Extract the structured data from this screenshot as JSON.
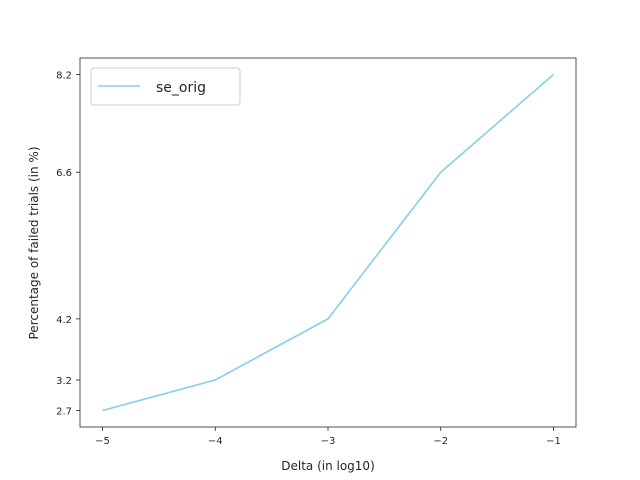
{
  "chart_data": {
    "type": "line",
    "x": [
      -5,
      -4,
      -3,
      -2,
      -1
    ],
    "x_tick_labels": [
      "−5",
      "−4",
      "−3",
      "−2",
      "−1"
    ],
    "y_ticks": [
      2.7,
      3.2,
      4.2,
      6.6,
      8.2
    ],
    "y_tick_labels": [
      "2.7",
      "3.2",
      "4.2",
      "6.6",
      "8.2"
    ],
    "series": [
      {
        "name": "se_orig",
        "values": [
          2.7,
          3.2,
          4.2,
          6.6,
          8.2
        ],
        "color": "#87ceeb"
      }
    ],
    "xlabel": "Delta (in log10)",
    "ylabel": "Percentage of failed trials (in %)",
    "xlim": [
      -5.2,
      -0.8
    ],
    "ylim": [
      2.43,
      8.47
    ],
    "legend_position": "top-left",
    "grid": false
  }
}
